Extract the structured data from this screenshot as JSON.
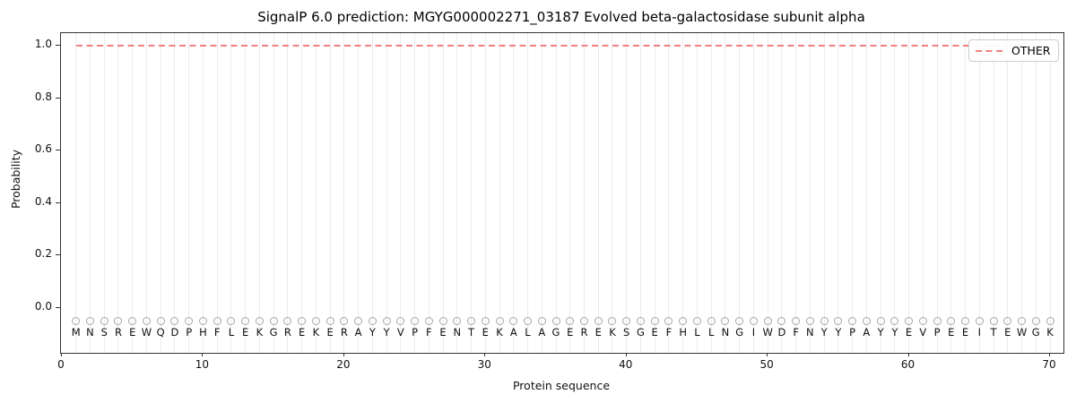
{
  "figure": {
    "title": "SignalP 6.0 prediction: MGYG000002271_03187 Evolved beta-galactosidase subunit alpha",
    "x_axis_label": "Protein sequence",
    "y_axis_label": "Probability"
  },
  "legend": {
    "position": "upper-right",
    "entries": [
      {
        "label": "OTHER",
        "line_style": "dashed",
        "color": "#f08080"
      }
    ]
  },
  "colors": {
    "other_line": "#f08080",
    "gridline": "#ececec",
    "marker_stroke": "#a6a6a6",
    "frame": "#333333"
  },
  "chart_data": {
    "type": "line",
    "title": "SignalP 6.0 prediction: MGYG000002271_03187 Evolved beta-galactosidase subunit alpha",
    "xlabel": "Protein sequence",
    "ylabel": "Probability",
    "xlim": [
      0,
      71
    ],
    "ylim": [
      -0.17,
      1.05
    ],
    "x_ticks": [
      0,
      10,
      20,
      30,
      40,
      50,
      60,
      70
    ],
    "y_ticks": [
      0.0,
      0.2,
      0.4,
      0.6,
      0.8,
      1.0
    ],
    "grid": "vertical line at every residue position, horizontal off",
    "legend_position": "upper-right",
    "series": [
      {
        "name": "OTHER",
        "style": "dashed",
        "color": "#f08080",
        "x_start": 1,
        "x_end": 70,
        "constant_value": 1.0,
        "note": "flat dashed line at probability 1.0 across all 70 residues"
      }
    ],
    "sequence": [
      "M",
      "N",
      "S",
      "R",
      "E",
      "W",
      "Q",
      "D",
      "P",
      "H",
      "F",
      "L",
      "E",
      "K",
      "G",
      "R",
      "E",
      "K",
      "E",
      "R",
      "A",
      "Y",
      "Y",
      "V",
      "P",
      "F",
      "E",
      "N",
      "T",
      "E",
      "K",
      "A",
      "L",
      "A",
      "G",
      "E",
      "R",
      "E",
      "K",
      "S",
      "G",
      "E",
      "F",
      "H",
      "L",
      "L",
      "N",
      "G",
      "I",
      "W",
      "D",
      "F",
      "N",
      "Y",
      "Y",
      "P",
      "A",
      "Y",
      "Y",
      "E",
      "V",
      "P",
      "E",
      "E",
      "I",
      "T",
      "E",
      "W",
      "G",
      "K"
    ],
    "sequence_markers": {
      "symbol": "open-circle",
      "probability": -0.05,
      "color": "#a6a6a6"
    }
  }
}
